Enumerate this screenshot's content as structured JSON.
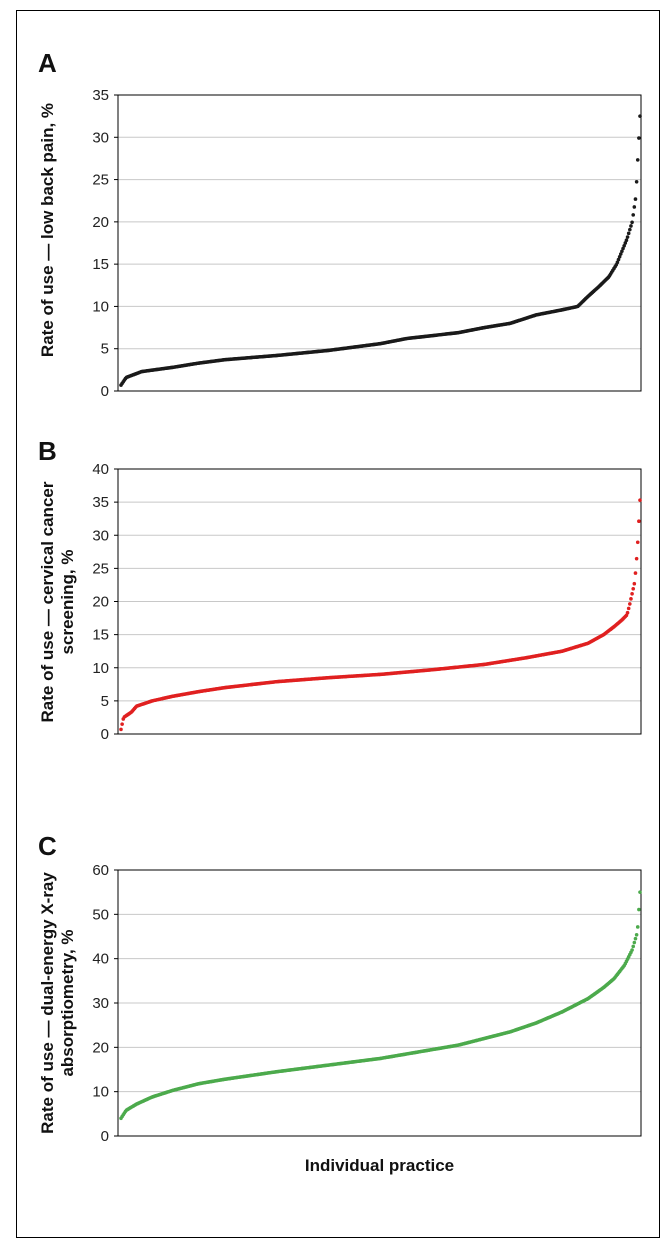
{
  "chart_data": [
    {
      "panel": "A",
      "type": "scatter",
      "ylabel": "Rate of use — low back pain, %",
      "xlabel": "",
      "ylim": [
        0,
        35
      ],
      "yticks": [
        0,
        5,
        10,
        15,
        20,
        25,
        30,
        35
      ],
      "grid": true,
      "color": "#1a1a1a",
      "curve": [
        [
          0.0,
          0.7
        ],
        [
          0.01,
          1.6
        ],
        [
          0.04,
          2.3
        ],
        [
          0.1,
          2.8
        ],
        [
          0.15,
          3.3
        ],
        [
          0.2,
          3.7
        ],
        [
          0.3,
          4.2
        ],
        [
          0.4,
          4.8
        ],
        [
          0.5,
          5.6
        ],
        [
          0.55,
          6.2
        ],
        [
          0.65,
          6.9
        ],
        [
          0.7,
          7.5
        ],
        [
          0.75,
          8.0
        ],
        [
          0.8,
          9.0
        ],
        [
          0.85,
          9.6
        ],
        [
          0.88,
          10.0
        ],
        [
          0.9,
          11.2
        ],
        [
          0.92,
          12.3
        ],
        [
          0.94,
          13.5
        ],
        [
          0.955,
          15.0
        ],
        [
          0.965,
          16.5
        ],
        [
          0.975,
          18.0
        ],
        [
          0.985,
          20.0
        ],
        [
          0.992,
          23.0
        ],
        [
          1.0,
          32.5
        ]
      ]
    },
    {
      "panel": "B",
      "type": "scatter",
      "ylabel_lines": [
        "Rate of use — cervical cancer",
        "screening, %"
      ],
      "xlabel": "",
      "ylim": [
        0,
        40
      ],
      "yticks": [
        0,
        5,
        10,
        15,
        20,
        25,
        30,
        35,
        40
      ],
      "grid": true,
      "color": "#e02020",
      "curve": [
        [
          0.0,
          0.7
        ],
        [
          0.005,
          2.5
        ],
        [
          0.02,
          3.3
        ],
        [
          0.03,
          4.2
        ],
        [
          0.06,
          5.0
        ],
        [
          0.1,
          5.7
        ],
        [
          0.15,
          6.4
        ],
        [
          0.2,
          7.0
        ],
        [
          0.3,
          7.9
        ],
        [
          0.4,
          8.5
        ],
        [
          0.5,
          9.0
        ],
        [
          0.6,
          9.7
        ],
        [
          0.7,
          10.5
        ],
        [
          0.78,
          11.5
        ],
        [
          0.85,
          12.5
        ],
        [
          0.9,
          13.7
        ],
        [
          0.93,
          15.0
        ],
        [
          0.95,
          16.2
        ],
        [
          0.965,
          17.2
        ],
        [
          0.975,
          18.0
        ],
        [
          0.98,
          19.5
        ],
        [
          0.99,
          23.0
        ],
        [
          0.995,
          28.0
        ],
        [
          1.0,
          35.3
        ]
      ]
    },
    {
      "panel": "C",
      "type": "scatter",
      "ylabel_lines": [
        "Rate of use — dual-energy X-ray",
        "absorptiometry, %"
      ],
      "xlabel": "Individual practice",
      "ylim": [
        0,
        60
      ],
      "yticks": [
        0,
        10,
        20,
        30,
        40,
        50,
        60
      ],
      "grid": true,
      "color": "#4caa4c",
      "curve": [
        [
          0.0,
          4.0
        ],
        [
          0.01,
          5.8
        ],
        [
          0.03,
          7.2
        ],
        [
          0.06,
          8.8
        ],
        [
          0.1,
          10.3
        ],
        [
          0.15,
          11.8
        ],
        [
          0.2,
          12.8
        ],
        [
          0.3,
          14.5
        ],
        [
          0.4,
          16.0
        ],
        [
          0.5,
          17.5
        ],
        [
          0.6,
          19.5
        ],
        [
          0.65,
          20.5
        ],
        [
          0.7,
          22.0
        ],
        [
          0.75,
          23.5
        ],
        [
          0.8,
          25.5
        ],
        [
          0.85,
          28.0
        ],
        [
          0.9,
          31.0
        ],
        [
          0.93,
          33.5
        ],
        [
          0.95,
          35.5
        ],
        [
          0.97,
          38.5
        ],
        [
          0.985,
          42.0
        ],
        [
          0.995,
          46.0
        ],
        [
          1.0,
          55.0
        ]
      ]
    }
  ],
  "panel_letters": [
    "A",
    "B",
    "C"
  ]
}
